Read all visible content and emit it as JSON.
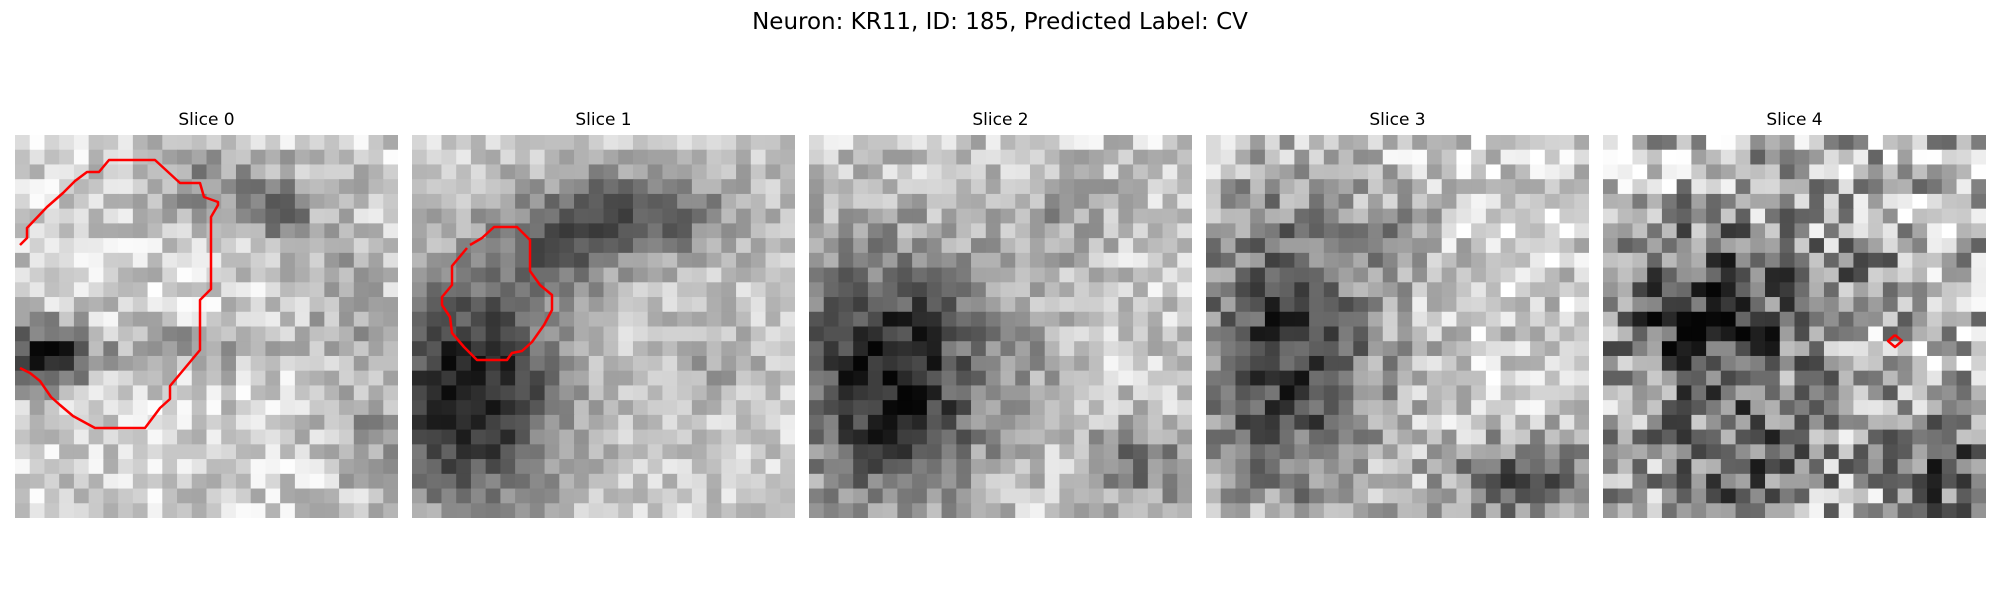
{
  "figure": {
    "title": "Neuron: KR11, ID: 185, Predicted Label: CV"
  },
  "panels": [
    {
      "title": "Slice 0"
    },
    {
      "title": "Slice 1"
    },
    {
      "title": "Slice 2"
    },
    {
      "title": "Slice 3"
    },
    {
      "title": "Slice 4"
    }
  ],
  "colors": {
    "contour": "#ff0000",
    "background": "#ffffff"
  }
}
